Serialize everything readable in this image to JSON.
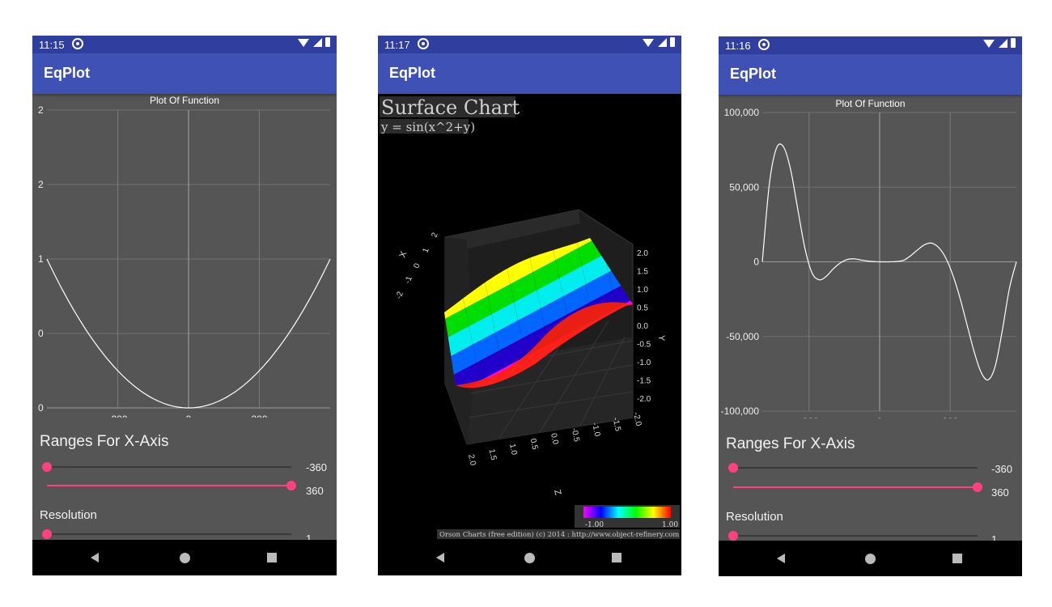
{
  "phones": [
    {
      "time": "11:15",
      "app_title": "EqPlot",
      "chart_data": {
        "type": "line",
        "title": "Plot Of Function",
        "x_ticks": [
          "-200",
          "0",
          "200"
        ],
        "y_ticks": [
          "2",
          "2",
          "1",
          "0",
          "0"
        ],
        "x": [
          -360,
          -270,
          -180,
          -90,
          0,
          90,
          180,
          270,
          360
        ],
        "y": [
          1.0,
          0.5625,
          0.25,
          0.0625,
          0.0,
          0.0625,
          0.25,
          0.5625,
          1.0
        ],
        "xlim": [
          -400,
          400
        ],
        "ylim": [
          0,
          2
        ],
        "grid": true
      },
      "ranges_title": "Ranges For X-Axis",
      "range_min_value": "-360",
      "range_max_value": "360",
      "resolution_title": "Resolution",
      "resolution_value": "1"
    },
    {
      "time": "11:17",
      "app_title": "EqPlot",
      "chart_data": {
        "type": "surface",
        "title": "Surface Chart",
        "subtitle": "y = sin(x^2+y)",
        "x_axis_label": "X",
        "x_ticks": [
          "2",
          "1",
          "0",
          "-1",
          "-2"
        ],
        "y_axis_label": "Y",
        "y_ticks": [
          "2.0",
          "1.5",
          "1.0",
          "0.5",
          "0.0",
          "-0.5",
          "-1.0",
          "-1.5",
          "-2.0"
        ],
        "z_axis_label": "Z",
        "z_ticks": [
          "2.0",
          "1.5",
          "1.0",
          "0.5",
          "0.0",
          "-0.5",
          "-1.0",
          "-1.5",
          "-2.0"
        ],
        "colorbar_min": "-1.00",
        "colorbar_max": "1.00",
        "credit": "Orson Charts (free edition) (c) 2014 : http://www.object-refinery.com"
      }
    },
    {
      "time": "11:16",
      "app_title": "EqPlot",
      "chart_data": {
        "type": "line",
        "title": "Plot Of Function",
        "x_ticks": [
          "-200",
          "0",
          "200"
        ],
        "y_ticks": [
          "100,000",
          "50,000",
          "0",
          "-50,000",
          "-100,000"
        ],
        "x": [
          -360,
          -340,
          -320,
          -300,
          -280,
          -260,
          -240,
          -220,
          -200,
          -180,
          -160,
          -140,
          -120,
          -100,
          -80,
          -60,
          -40,
          -20,
          0,
          20,
          40,
          60,
          80,
          100,
          120,
          140,
          160,
          180,
          200,
          220,
          240,
          260,
          280,
          300,
          320,
          340,
          360
        ],
        "y": [
          0,
          52000,
          76000,
          77000,
          62000,
          36000,
          10000,
          -7000,
          -12000,
          -10000,
          -5000,
          -1000,
          1500,
          2000,
          1200,
          500,
          100,
          0,
          0,
          200,
          1000,
          4000,
          8000,
          11500,
          12500,
          9500,
          2500,
          -9000,
          -24000,
          -42000,
          -60000,
          -74000,
          -79000,
          -70000,
          -46000,
          -18000,
          0
        ],
        "xlim": [
          -360,
          360
        ],
        "ylim": [
          -100000,
          100000
        ],
        "grid": true
      },
      "ranges_title": "Ranges For X-Axis",
      "range_min_value": "-360",
      "range_max_value": "360",
      "resolution_title": "Resolution",
      "resolution_value": "1"
    }
  ]
}
